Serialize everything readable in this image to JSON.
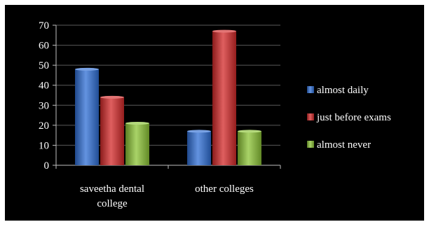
{
  "chart_data": {
    "type": "bar",
    "categories": [
      "saveetha dental college",
      "other colleges"
    ],
    "category_lines": [
      [
        "saveetha dental",
        "college"
      ],
      [
        "other colleges"
      ]
    ],
    "series": [
      {
        "name": "almost daily",
        "color": "#2f6fd6",
        "values": [
          48,
          17
        ]
      },
      {
        "name": "just before exams",
        "color": "#d42a2a",
        "values": [
          34,
          67
        ]
      },
      {
        "name": "almost never",
        "color": "#8cc436",
        "values": [
          21,
          17
        ]
      }
    ],
    "y_ticks": [
      "0",
      "10",
      "20",
      "30",
      "40",
      "50",
      "60",
      "70"
    ],
    "ylim": [
      0,
      70
    ],
    "grid": true,
    "legend_position": "right",
    "background_color": "#000000",
    "text_color": "#ffffff"
  }
}
